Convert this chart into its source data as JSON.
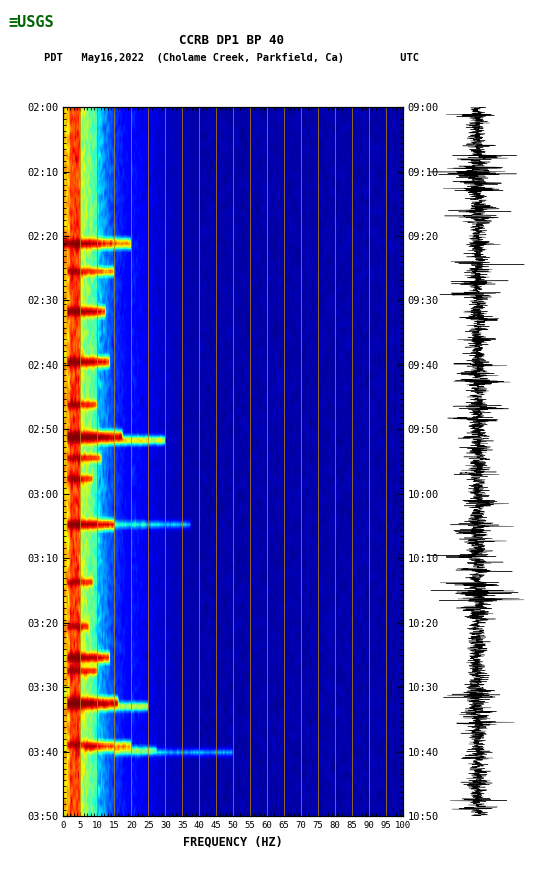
{
  "title_line1": "CCRB DP1 BP 40",
  "title_line2": "PDT   May16,2022  (Cholame Creek, Parkfield, Ca)         UTC",
  "xlabel": "FREQUENCY (HZ)",
  "freq_ticks": [
    0,
    5,
    10,
    15,
    20,
    25,
    30,
    35,
    40,
    45,
    50,
    55,
    60,
    65,
    70,
    75,
    80,
    85,
    90,
    95,
    100
  ],
  "freq_vlines": [
    5,
    10,
    15,
    20,
    25,
    30,
    35,
    40,
    45,
    50,
    55,
    60,
    65,
    70,
    75,
    80,
    85,
    90,
    95,
    100
  ],
  "time_tick_labels_left": [
    "02:00",
    "02:10",
    "02:20",
    "02:30",
    "02:40",
    "02:50",
    "03:00",
    "03:10",
    "03:20",
    "03:30",
    "03:40",
    "03:50"
  ],
  "time_tick_labels_right": [
    "09:00",
    "09:10",
    "09:20",
    "09:30",
    "09:40",
    "09:50",
    "10:00",
    "10:10",
    "10:20",
    "10:30",
    "10:40",
    "10:50"
  ],
  "background_color": "#ffffff",
  "spectrogram_bg": "#00008B",
  "waveform_color": "#000000",
  "vline_color": "#b8860b",
  "fig_width": 5.52,
  "fig_height": 8.92,
  "usgs_color": "#006400"
}
